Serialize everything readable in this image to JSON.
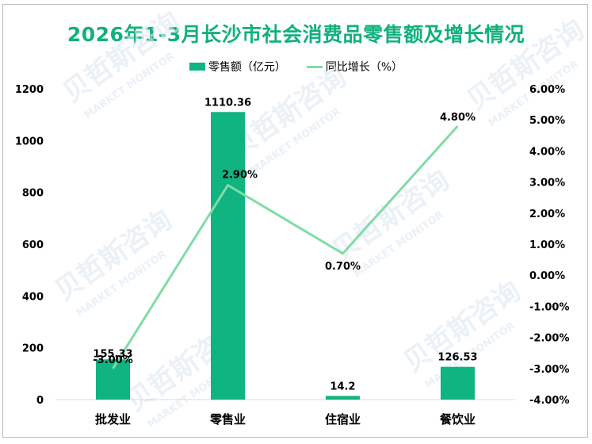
{
  "title": "2026年1-3月长沙市社会消费品零售额及增长情况",
  "legend": {
    "bar_label": "零售额（亿元）",
    "line_label": "同比增长（%）"
  },
  "colors": {
    "title": "#12b07f",
    "bar": "#0fb481",
    "line": "#82dba5",
    "axis": "#d9d9d9"
  },
  "watermark": {
    "text_cn": "贝哲斯咨询",
    "text_en": "MARKET MONITOR"
  },
  "chart_data": {
    "type": "bar",
    "title": "2026年1-3月长沙市社会消费品零售额及增长情况",
    "categories": [
      "批发业",
      "零售业",
      "住宿业",
      "餐饮业"
    ],
    "series": [
      {
        "name": "零售额（亿元）",
        "type": "bar",
        "axis": "left",
        "values": [
          155.33,
          1110.36,
          14.2,
          126.53
        ],
        "labels": [
          "155.33",
          "1110.36",
          "14.2",
          "126.53"
        ]
      },
      {
        "name": "同比增长（%）",
        "type": "line",
        "axis": "right",
        "values": [
          -3.0,
          2.9,
          0.7,
          4.8
        ],
        "labels": [
          "-3.00%",
          "2.90%",
          "0.70%",
          "4.80%"
        ]
      }
    ],
    "y_left": {
      "ylim": [
        0,
        1200
      ],
      "ticks": [
        "0",
        "200",
        "400",
        "600",
        "800",
        "1000",
        "1200"
      ]
    },
    "y_right": {
      "ylim": [
        -4.0,
        6.0
      ],
      "ticks": [
        "-4.00%",
        "-3.00%",
        "-2.00%",
        "-1.00%",
        "0.00%",
        "1.00%",
        "2.00%",
        "3.00%",
        "4.00%",
        "5.00%",
        "6.00%"
      ]
    },
    "xlabel": "",
    "ylabel": "",
    "grid": false,
    "legend_position": "top"
  }
}
